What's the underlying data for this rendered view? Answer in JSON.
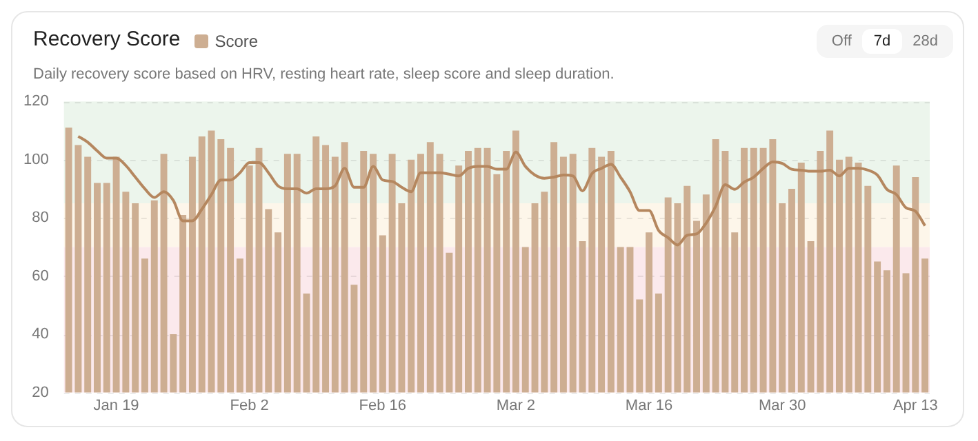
{
  "chart_data": {
    "type": "bar",
    "title": "Recovery Score",
    "subtitle": "Daily recovery score based on HRV, resting heart rate, sleep score and sleep duration.",
    "annotations": [
      "Off",
      "7d",
      "28d"
    ],
    "categories": [
      null,
      null,
      null,
      null,
      null,
      "Jan 19",
      null,
      null,
      null,
      null,
      null,
      null,
      null,
      null,
      null,
      null,
      null,
      null,
      null,
      "Feb 2",
      null,
      null,
      null,
      null,
      null,
      null,
      null,
      null,
      null,
      null,
      null,
      null,
      null,
      "Feb 16",
      null,
      null,
      null,
      null,
      null,
      null,
      null,
      null,
      null,
      null,
      null,
      null,
      null,
      "Mar 2",
      null,
      null,
      null,
      null,
      null,
      null,
      null,
      null,
      null,
      null,
      null,
      null,
      null,
      "Mar 16",
      null,
      null,
      null,
      null,
      null,
      null,
      null,
      null,
      null,
      null,
      null,
      null,
      null,
      "Mar 30",
      null,
      null,
      null,
      null,
      null,
      null,
      null,
      null,
      null,
      null,
      null,
      null,
      null,
      "Apr 13",
      null
    ],
    "series": [
      {
        "name": "Score",
        "color": "#cdae92",
        "values": [
          111,
          105,
          101,
          92,
          92,
          101,
          89,
          85,
          66,
          86,
          102,
          40,
          81,
          101,
          108,
          110,
          107,
          104,
          66,
          98,
          104,
          83,
          75,
          102,
          102,
          54,
          108,
          105,
          101,
          106,
          57,
          103,
          102,
          74,
          102,
          85,
          100,
          102,
          106,
          102,
          68,
          98,
          103,
          104,
          104,
          95,
          103,
          110,
          70,
          85,
          89,
          106,
          101,
          102,
          72,
          104,
          101,
          103,
          70,
          70,
          52,
          75,
          54,
          87,
          85,
          91,
          79,
          88,
          107,
          103,
          75,
          104,
          104,
          104,
          107,
          85,
          90,
          99,
          72,
          103,
          110,
          100,
          101,
          99,
          91,
          65,
          62,
          98,
          61,
          94,
          66
        ]
      },
      {
        "type": "line",
        "color": "#b5875f",
        "values": [
          null,
          108,
          106,
          103,
          100.5,
          100.5,
          98,
          94,
          90,
          87,
          89,
          86,
          79,
          79,
          83,
          88,
          93,
          93,
          95.5,
          99,
          99,
          95.5,
          91,
          90,
          90,
          88.5,
          90,
          90,
          91,
          97,
          90.5,
          90.5,
          97.7,
          93,
          92.5,
          90.5,
          89,
          95.5,
          95.5,
          95.5,
          95,
          94.4,
          97,
          97.7,
          97.7,
          96.7,
          96.7,
          102.6,
          97.7,
          94.7,
          93.6,
          94,
          94.7,
          94.4,
          89.3,
          95.2,
          97,
          98.4,
          94,
          89,
          82.5,
          82.5,
          75.7,
          73.2,
          70.7,
          74,
          74.5,
          78.2,
          84,
          91.4,
          89.8,
          92.3,
          94,
          97,
          99.2,
          98.7,
          96.7,
          96.4,
          96,
          96,
          96.4,
          94.4,
          97,
          97,
          96.4,
          94.7,
          89.8,
          88,
          83.5,
          82.3,
          77.3
        ]
      }
    ],
    "ylim": [
      20,
      120
    ],
    "yticks": [
      20,
      40,
      60,
      80,
      100,
      120
    ],
    "grid": "y",
    "legend": "top left",
    "bands": [
      {
        "axis": "y",
        "from": 85,
        "to": 120,
        "color": "#ecf5ec"
      },
      {
        "axis": "y",
        "from": 70,
        "to": 85,
        "color": "#fdf6ea"
      },
      {
        "axis": "y",
        "from": 20,
        "to": 70,
        "color": "#fbe9ec"
      }
    ]
  }
}
